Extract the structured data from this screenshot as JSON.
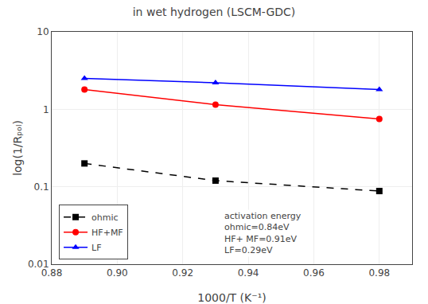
{
  "chart_data": {
    "type": "line",
    "title": "in wet hydrogen (LSCM-GDC)",
    "xlabel": "1000/T (K⁻¹)",
    "ylabel": "log(1/Rₚₒₗ)",
    "x": [
      0.89,
      0.93,
      0.98
    ],
    "series": [
      {
        "name": "ohmic",
        "color": "black",
        "marker": "square",
        "line_style": "dashed",
        "values": [
          0.2,
          0.12,
          0.088
        ]
      },
      {
        "name": "HF+MF",
        "color": "red",
        "marker": "circle",
        "line_style": "solid",
        "values": [
          1.8,
          1.15,
          0.75
        ]
      },
      {
        "name": "LF",
        "color": "blue",
        "marker": "triangle-up",
        "line_style": "solid",
        "values": [
          2.5,
          2.2,
          1.8
        ]
      }
    ],
    "xlim": [
      0.88,
      0.99
    ],
    "ylim": [
      0.01,
      10
    ],
    "xticks": [
      0.88,
      {
        "value": 0.9,
        "label": "0.90"
      },
      0.92,
      0.94,
      0.96,
      0.98
    ],
    "yticks": [
      0.01,
      0.1,
      1,
      10
    ],
    "log": "y",
    "grid": true,
    "legend": "lower left",
    "annotations": [
      "activation energy",
      "ohmic=0.84eV",
      "HF+ MF=0.91eV",
      "LF=0.29eV"
    ]
  }
}
